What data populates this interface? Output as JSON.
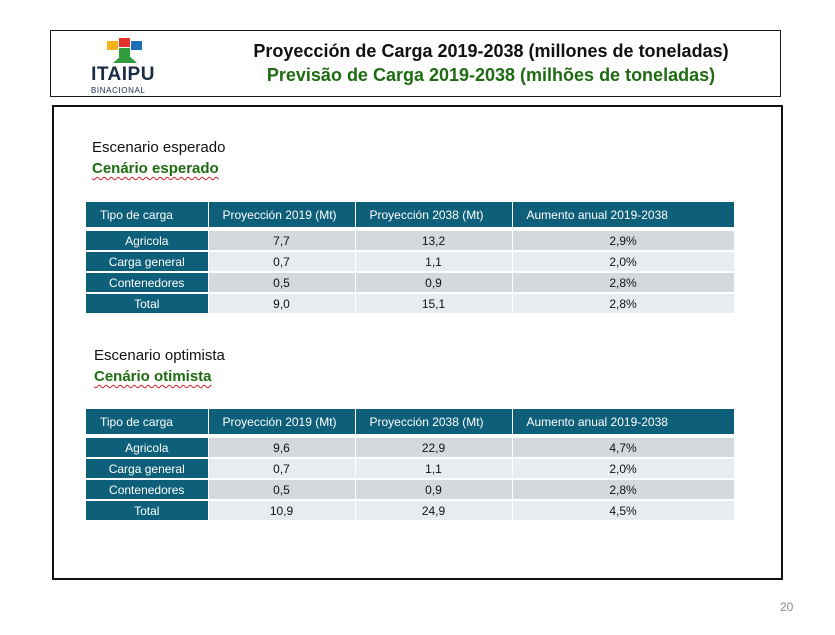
{
  "logo": {
    "word": "ITAIPU",
    "sub": "BINACIONAL",
    "colors": [
      "#e63329",
      "#f5b21b",
      "#2f9d3e",
      "#1d6fb8"
    ]
  },
  "header": {
    "title_es": "Proyección de Carga 2019-2038 (millones de toneladas)",
    "title_pt": "Previsão de Carga 2019-2038 (milhões de toneladas)"
  },
  "scenarios": [
    {
      "title_es": "Escenario esperado",
      "title_pt": "Cenário esperado",
      "columns": [
        "Tipo de carga",
        "Proyección 2019 (Mt)",
        "Proyección 2038 (Mt)",
        "Aumento anual 2019-2038"
      ],
      "rows": [
        [
          "Agricola",
          "7,7",
          "13,2",
          "2,9%"
        ],
        [
          "Carga general",
          "0,7",
          "1,1",
          "2,0%"
        ],
        [
          "Contenedores",
          "0,5",
          "0,9",
          "2,8%"
        ],
        [
          "Total",
          "9,0",
          "15,1",
          "2,8%"
        ]
      ]
    },
    {
      "title_es": "Escenario optimista",
      "title_pt": "Cenário otimista",
      "columns": [
        "Tipo de carga",
        "Proyección 2019 (Mt)",
        "Proyección 2038 (Mt)",
        "Aumento anual 2019-2038"
      ],
      "rows": [
        [
          "Agricola",
          "9,6",
          "22,9",
          "4,7%"
        ],
        [
          "Carga general",
          "0,7",
          "1,1",
          "2,0%"
        ],
        [
          "Contenedores",
          "0,5",
          "0,9",
          "2,8%"
        ],
        [
          "Total",
          "10,9",
          "24,9",
          "4,5%"
        ]
      ]
    }
  ],
  "page_number": "20"
}
